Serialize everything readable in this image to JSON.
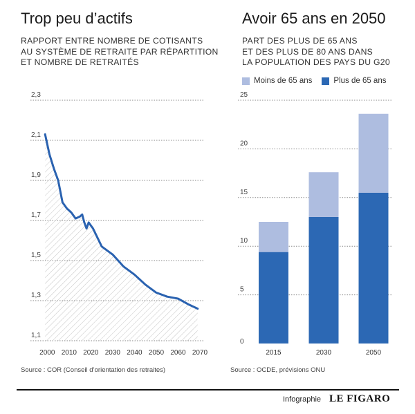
{
  "left": {
    "title": "Trop peu d’actifs",
    "subtitle_lines": [
      "RAPPORT ENTRE NOMBRE DE COTISANTS",
      "AU SYSTÈME DE RETRAITE PAR RÉPARTITION",
      "ET NOMBRE DE RETRAITÉS"
    ],
    "source": "Source : COR (Conseil d’orientation des retraites)"
  },
  "right": {
    "title": "Avoir 65 ans en 2050",
    "subtitle_lines": [
      "PART DES PLUS DE 65 ANS",
      "ET DES PLUS DE 80 ANS DANS",
      "LA POPULATION DES PAYS DU G20"
    ],
    "source": "Source : OCDE, prévisions ONU"
  },
  "footer": {
    "label": "Infographie",
    "brand": "LE FIGARO"
  },
  "colors": {
    "line": "#2a62b0",
    "dark_bar": "#2c68b4",
    "light_bar": "#aebde0",
    "hatch": "#c4c4c4"
  },
  "chart_data": [
    {
      "type": "area",
      "title": "Trop peu d’actifs",
      "ylim": [
        1.1,
        2.3
      ],
      "y_ticks": [
        "1,1",
        "1,3",
        "1,5",
        "1,7",
        "1,9",
        "2,1",
        "2,3"
      ],
      "y_tick_values": [
        1.1,
        1.3,
        1.5,
        1.7,
        1.9,
        2.1,
        2.3
      ],
      "xlim": [
        1998,
        2070
      ],
      "x_ticks": [
        "2000",
        "2010",
        "2020",
        "2030",
        "2040",
        "2050",
        "2060",
        "2070"
      ],
      "x_tick_values": [
        2000,
        2010,
        2020,
        2030,
        2040,
        2050,
        2060,
        2070
      ],
      "grid": true,
      "series": [
        {
          "x": [
            1999,
            2001,
            2003,
            2005,
            2007,
            2009,
            2011,
            2013,
            2015,
            2016,
            2017,
            2018,
            2019,
            2021,
            2025,
            2030,
            2035,
            2040,
            2045,
            2050,
            2055,
            2060,
            2065,
            2069
          ],
          "y": [
            2.13,
            2.03,
            1.96,
            1.9,
            1.79,
            1.76,
            1.74,
            1.71,
            1.72,
            1.73,
            1.69,
            1.66,
            1.69,
            1.66,
            1.57,
            1.53,
            1.47,
            1.43,
            1.38,
            1.34,
            1.32,
            1.31,
            1.28,
            1.26
          ]
        }
      ]
    },
    {
      "type": "bar",
      "title": "Avoir 65 ans en 2050",
      "categories": [
        "2015",
        "2030",
        "2050"
      ],
      "ylim": [
        0,
        25
      ],
      "y_ticks": [
        "0",
        "5",
        "10",
        "15",
        "20",
        "25"
      ],
      "y_tick_values": [
        0,
        5,
        10,
        15,
        20,
        25
      ],
      "legend": "top-right",
      "grid": true,
      "stacked": true,
      "series": [
        {
          "name": "Plus de 65 ans",
          "values": [
            9.4,
            13.0,
            15.5
          ]
        },
        {
          "name": "Moins de 65 ans",
          "values": [
            3.1,
            4.6,
            8.1
          ]
        }
      ]
    }
  ]
}
